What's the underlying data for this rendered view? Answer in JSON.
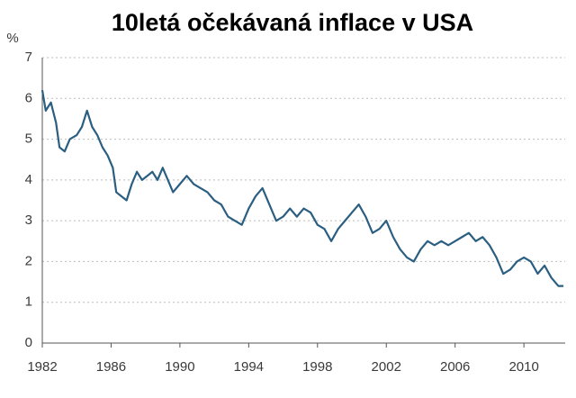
{
  "chart_data": {
    "type": "line",
    "title": "10letá očekávaná inflace v USA",
    "y_label": "%",
    "x": [
      1982.0,
      1982.2,
      1982.5,
      1982.8,
      1983.0,
      1983.3,
      1983.6,
      1984.0,
      1984.3,
      1984.6,
      1984.9,
      1985.2,
      1985.5,
      1985.8,
      1986.1,
      1986.3,
      1986.6,
      1986.9,
      1987.2,
      1987.5,
      1987.8,
      1988.1,
      1988.4,
      1988.7,
      1989.0,
      1989.3,
      1989.6,
      1990.0,
      1990.4,
      1990.8,
      1991.2,
      1991.6,
      1992.0,
      1992.4,
      1992.8,
      1993.2,
      1993.6,
      1994.0,
      1994.4,
      1994.8,
      1995.2,
      1995.6,
      1996.0,
      1996.4,
      1996.8,
      1997.2,
      1997.6,
      1998.0,
      1998.4,
      1998.8,
      1999.2,
      1999.6,
      2000.0,
      2000.4,
      2000.8,
      2001.2,
      2001.6,
      2002.0,
      2002.4,
      2002.8,
      2003.2,
      2003.6,
      2004.0,
      2004.4,
      2004.8,
      2005.2,
      2005.6,
      2006.0,
      2006.4,
      2006.8,
      2007.2,
      2007.6,
      2008.0,
      2008.4,
      2008.8,
      2009.2,
      2009.6,
      2010.0,
      2010.4,
      2010.8,
      2011.2,
      2011.6,
      2012.0,
      2012.3
    ],
    "series": [
      {
        "color": "#2b5f82",
        "values": [
          6.2,
          5.7,
          5.9,
          5.4,
          4.8,
          4.7,
          5.0,
          5.1,
          5.3,
          5.7,
          5.3,
          5.1,
          4.8,
          4.6,
          4.3,
          3.7,
          3.6,
          3.5,
          3.9,
          4.2,
          4.0,
          4.1,
          4.2,
          4.0,
          4.3,
          4.0,
          3.7,
          3.9,
          4.1,
          3.9,
          3.8,
          3.7,
          3.5,
          3.4,
          3.1,
          3.0,
          2.9,
          3.3,
          3.6,
          3.8,
          3.4,
          3.0,
          3.1,
          3.3,
          3.1,
          3.3,
          3.2,
          2.9,
          2.8,
          2.5,
          2.8,
          3.0,
          3.2,
          3.4,
          3.1,
          2.7,
          2.8,
          3.0,
          2.6,
          2.3,
          2.1,
          2.0,
          2.3,
          2.5,
          2.4,
          2.5,
          2.4,
          2.5,
          2.6,
          2.7,
          2.5,
          2.6,
          2.4,
          2.1,
          1.7,
          1.8,
          2.0,
          2.1,
          2.0,
          1.7,
          1.9,
          1.6,
          1.4,
          1.4
        ]
      }
    ],
    "xlim": [
      1982,
      2012.4
    ],
    "xticks": [
      1982,
      1986,
      1990,
      1994,
      1998,
      2002,
      2006,
      2010
    ],
    "ylim": [
      0,
      7
    ],
    "yticks": [
      0,
      1,
      2,
      3,
      4,
      5,
      6,
      7
    ],
    "grid": true
  }
}
